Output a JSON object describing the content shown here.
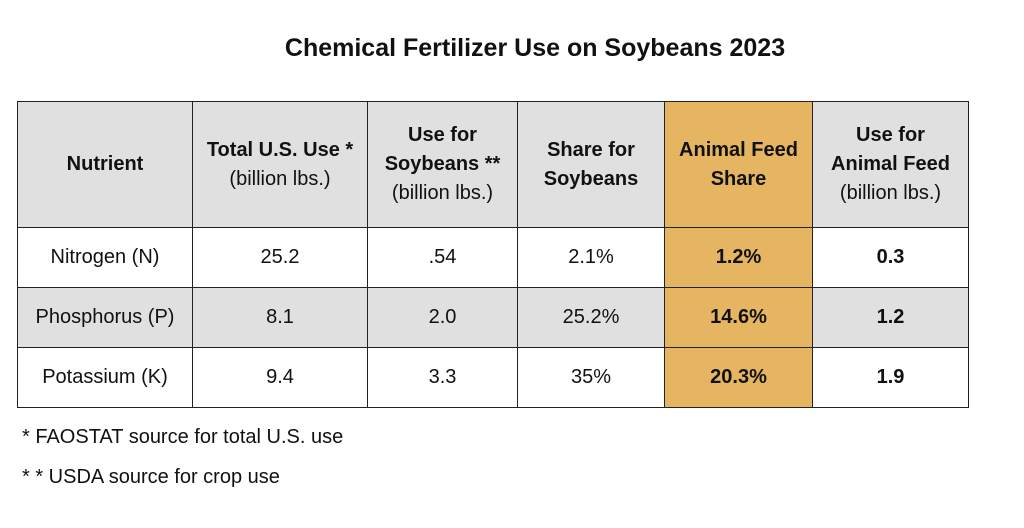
{
  "title": "Chemical Fertilizer Use on Soybeans 2023",
  "accent_color": "#e5b561",
  "header_bg_color": "#e0e0e0",
  "table": {
    "headers": [
      {
        "lines": [
          "Nutrient"
        ],
        "unit": ""
      },
      {
        "lines": [
          "Total U.S. Use *"
        ],
        "unit": "(billion lbs.)"
      },
      {
        "lines": [
          "Use for",
          "Soybeans **"
        ],
        "unit": "(billion lbs.)"
      },
      {
        "lines": [
          "Share for",
          "Soybeans"
        ],
        "unit": ""
      },
      {
        "lines": [
          "Animal Feed",
          "Share"
        ],
        "unit": ""
      },
      {
        "lines": [
          "Use for",
          "Animal Feed"
        ],
        "unit": "(billion lbs.)"
      }
    ],
    "rows": [
      [
        "Nitrogen (N)",
        "25.2",
        ".54",
        "2.1%",
        "1.2%",
        "0.3"
      ],
      [
        "Phosphorus (P)",
        "8.1",
        "2.0",
        "25.2%",
        "14.6%",
        "1.2"
      ],
      [
        "Potassium (K)",
        "9.4",
        "3.3",
        "35%",
        "20.3%",
        "1.9"
      ]
    ]
  },
  "footnotes": [
    " * FAOSTAT source for total U.S. use",
    "* * USDA source for crop use"
  ]
}
